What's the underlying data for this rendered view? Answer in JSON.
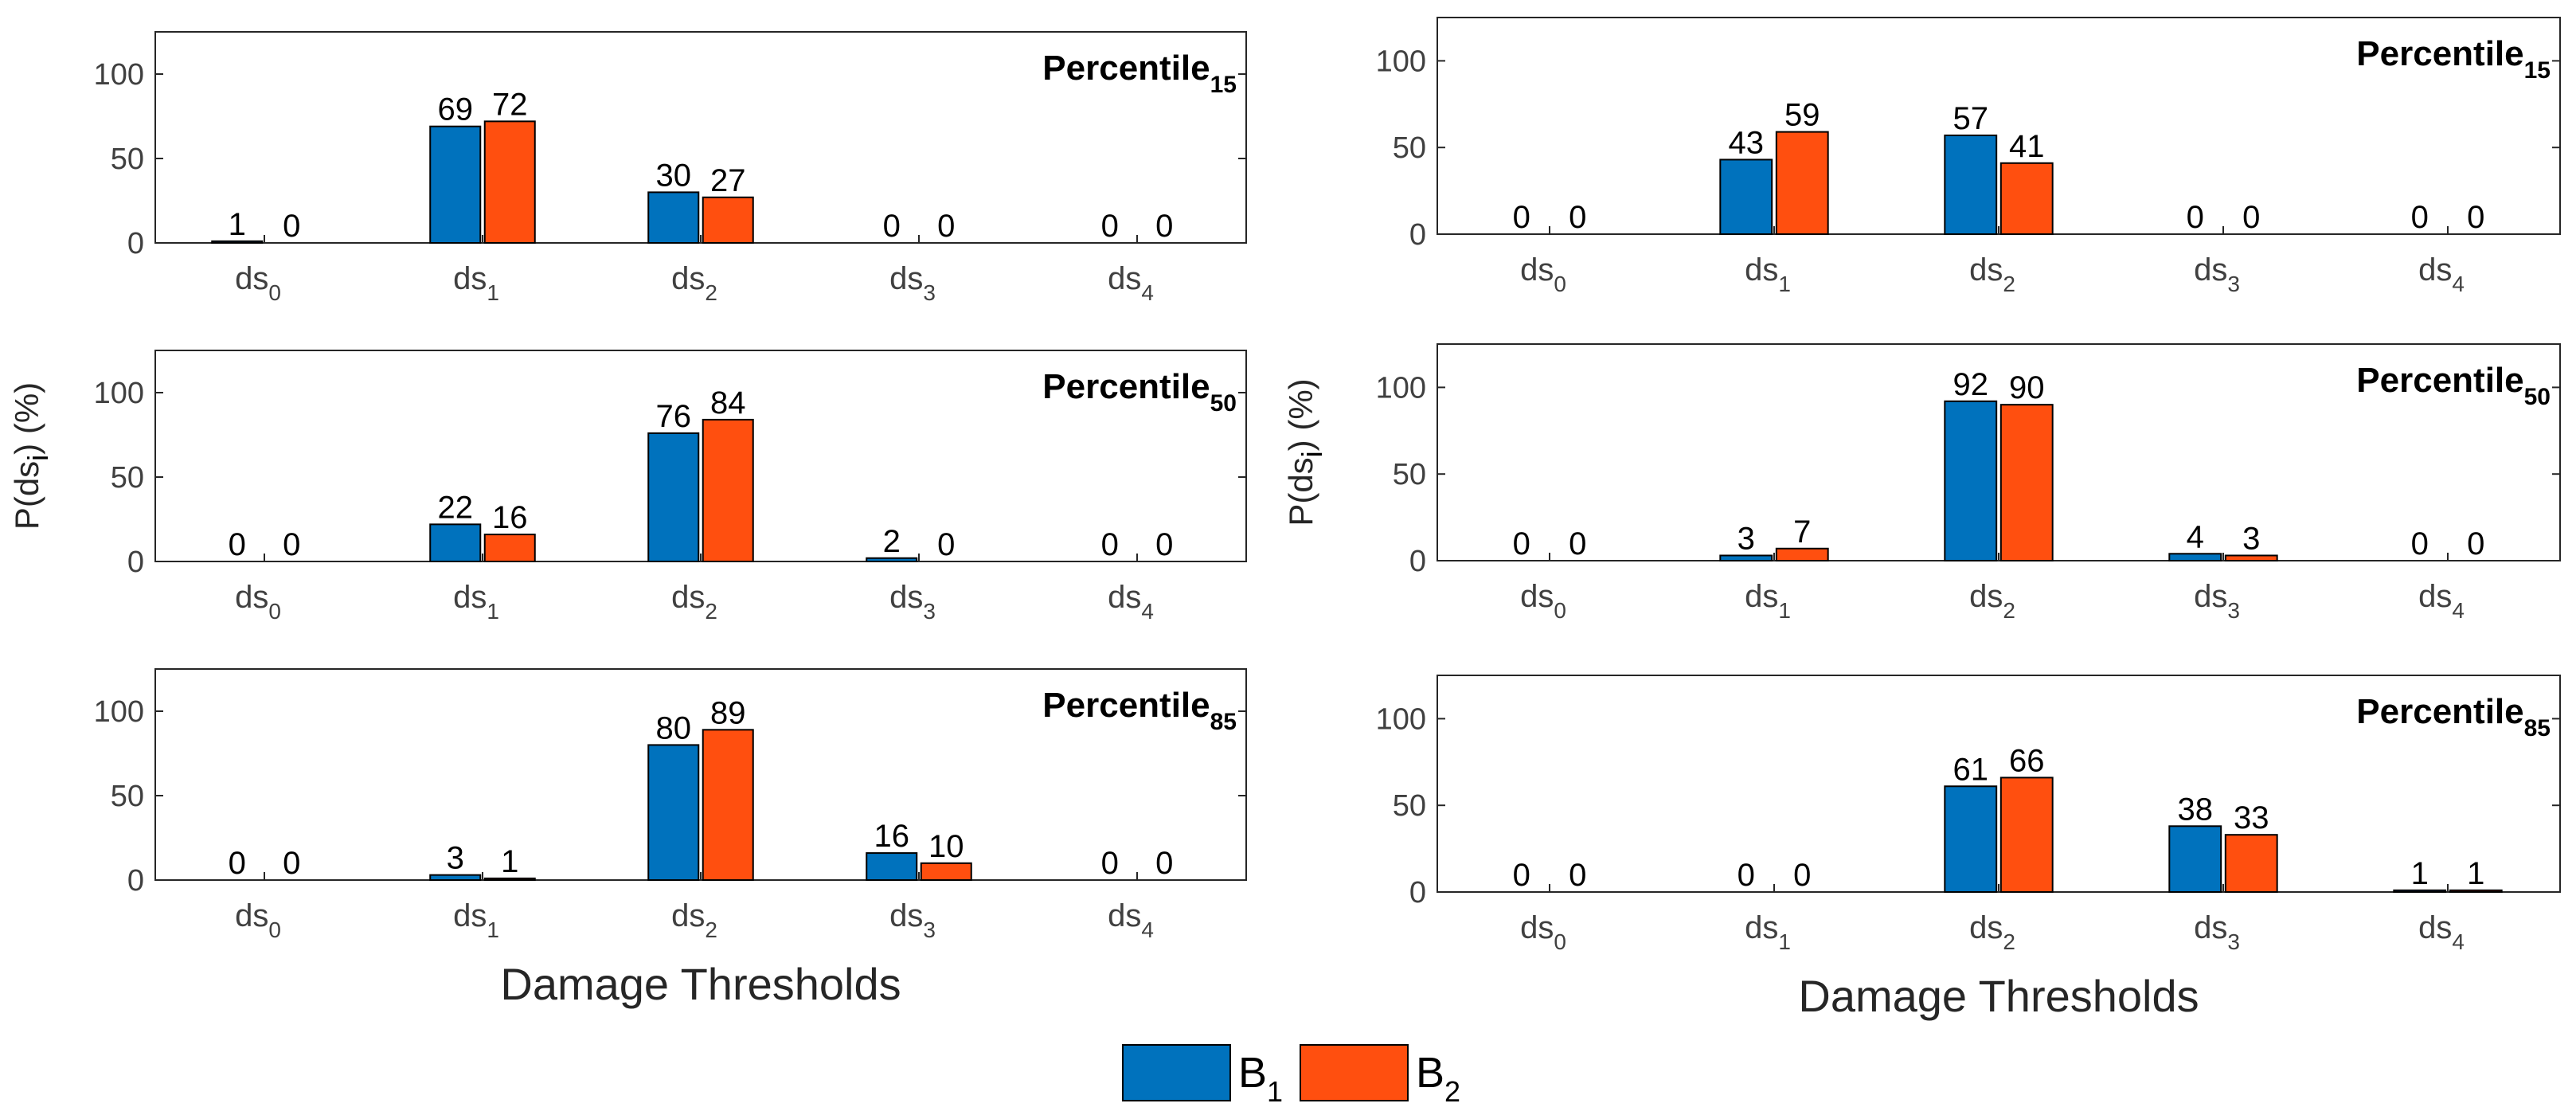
{
  "chart_data": [
    {
      "type": "bar",
      "column": "left",
      "row": 0,
      "panel_title": "Percentile",
      "panel_title_sub": "15",
      "categories": [
        "ds0",
        "ds1",
        "ds2",
        "ds3",
        "ds4"
      ],
      "category_labels": [
        {
          "base": "ds",
          "sub": "0"
        },
        {
          "base": "ds",
          "sub": "1"
        },
        {
          "base": "ds",
          "sub": "2"
        },
        {
          "base": "ds",
          "sub": "3"
        },
        {
          "base": "ds",
          "sub": "4"
        }
      ],
      "series": [
        {
          "name": "B1",
          "values": [
            1,
            69,
            30,
            0,
            0
          ]
        },
        {
          "name": "B2",
          "values": [
            0,
            72,
            27,
            0,
            0
          ]
        }
      ],
      "ylim": [
        0,
        125
      ],
      "yticks": [
        0,
        50,
        100
      ],
      "ylabel": "",
      "xlabel": ""
    },
    {
      "type": "bar",
      "column": "left",
      "row": 1,
      "panel_title": "Percentile",
      "panel_title_sub": "50",
      "categories": [
        "ds0",
        "ds1",
        "ds2",
        "ds3",
        "ds4"
      ],
      "category_labels": [
        {
          "base": "ds",
          "sub": "0"
        },
        {
          "base": "ds",
          "sub": "1"
        },
        {
          "base": "ds",
          "sub": "2"
        },
        {
          "base": "ds",
          "sub": "3"
        },
        {
          "base": "ds",
          "sub": "4"
        }
      ],
      "series": [
        {
          "name": "B1",
          "values": [
            0,
            22,
            76,
            2,
            0
          ]
        },
        {
          "name": "B2",
          "values": [
            0,
            16,
            84,
            0,
            0
          ]
        }
      ],
      "ylim": [
        0,
        125
      ],
      "yticks": [
        0,
        50,
        100
      ],
      "ylabel": "P(ds_i) (%)",
      "xlabel": ""
    },
    {
      "type": "bar",
      "column": "left",
      "row": 2,
      "panel_title": "Percentile",
      "panel_title_sub": "85",
      "categories": [
        "ds0",
        "ds1",
        "ds2",
        "ds3",
        "ds4"
      ],
      "category_labels": [
        {
          "base": "ds",
          "sub": "0"
        },
        {
          "base": "ds",
          "sub": "1"
        },
        {
          "base": "ds",
          "sub": "2"
        },
        {
          "base": "ds",
          "sub": "3"
        },
        {
          "base": "ds",
          "sub": "4"
        }
      ],
      "series": [
        {
          "name": "B1",
          "values": [
            0,
            3,
            80,
            16,
            0
          ]
        },
        {
          "name": "B2",
          "values": [
            0,
            1,
            89,
            10,
            0
          ]
        }
      ],
      "ylim": [
        0,
        125
      ],
      "yticks": [
        0,
        50,
        100
      ],
      "ylabel": "",
      "xlabel": "Damage Thresholds"
    },
    {
      "type": "bar",
      "column": "right",
      "row": 0,
      "panel_title": "Percentile",
      "panel_title_sub": "15",
      "categories": [
        "ds0",
        "ds1",
        "ds2",
        "ds3",
        "ds4"
      ],
      "category_labels": [
        {
          "base": "ds",
          "sub": "0"
        },
        {
          "base": "ds",
          "sub": "1"
        },
        {
          "base": "ds",
          "sub": "2"
        },
        {
          "base": "ds",
          "sub": "3"
        },
        {
          "base": "ds",
          "sub": "4"
        }
      ],
      "series": [
        {
          "name": "B1",
          "values": [
            0,
            43,
            57,
            0,
            0
          ]
        },
        {
          "name": "B2",
          "values": [
            0,
            59,
            41,
            0,
            0
          ]
        }
      ],
      "ylim": [
        0,
        125
      ],
      "yticks": [
        0,
        50,
        100
      ],
      "ylabel": "",
      "xlabel": ""
    },
    {
      "type": "bar",
      "column": "right",
      "row": 1,
      "panel_title": "Percentile",
      "panel_title_sub": "50",
      "categories": [
        "ds0",
        "ds1",
        "ds2",
        "ds3",
        "ds4"
      ],
      "category_labels": [
        {
          "base": "ds",
          "sub": "0"
        },
        {
          "base": "ds",
          "sub": "1"
        },
        {
          "base": "ds",
          "sub": "2"
        },
        {
          "base": "ds",
          "sub": "3"
        },
        {
          "base": "ds",
          "sub": "4"
        }
      ],
      "series": [
        {
          "name": "B1",
          "values": [
            0,
            3,
            92,
            4,
            0
          ]
        },
        {
          "name": "B2",
          "values": [
            0,
            7,
            90,
            3,
            0
          ]
        }
      ],
      "ylim": [
        0,
        125
      ],
      "yticks": [
        0,
        50,
        100
      ],
      "ylabel": "P(ds_i) (%)",
      "xlabel": ""
    },
    {
      "type": "bar",
      "column": "right",
      "row": 2,
      "panel_title": "Percentile",
      "panel_title_sub": "85",
      "categories": [
        "ds0",
        "ds1",
        "ds2",
        "ds3",
        "ds4"
      ],
      "category_labels": [
        {
          "base": "ds",
          "sub": "0"
        },
        {
          "base": "ds",
          "sub": "1"
        },
        {
          "base": "ds",
          "sub": "2"
        },
        {
          "base": "ds",
          "sub": "3"
        },
        {
          "base": "ds",
          "sub": "4"
        }
      ],
      "series": [
        {
          "name": "B1",
          "values": [
            0,
            0,
            61,
            38,
            1
          ]
        },
        {
          "name": "B2",
          "values": [
            0,
            0,
            66,
            33,
            1
          ]
        }
      ],
      "ylim": [
        0,
        125
      ],
      "yticks": [
        0,
        50,
        100
      ],
      "ylabel": "",
      "xlabel": "Damage Thresholds"
    }
  ],
  "ylabel_parts": {
    "pre": "P(ds",
    "sub": "i",
    "post": ") (%)"
  },
  "legend": {
    "placement": "bottom-center",
    "items": [
      {
        "name": "B1",
        "base": "B",
        "sub": "1",
        "color": "#0072BD"
      },
      {
        "name": "B2",
        "base": "B",
        "sub": "2",
        "color": "#FF4F0F"
      }
    ]
  },
  "colors": {
    "B1": "#0072BD",
    "B2": "#FF4F0F",
    "axis": "#262626"
  }
}
